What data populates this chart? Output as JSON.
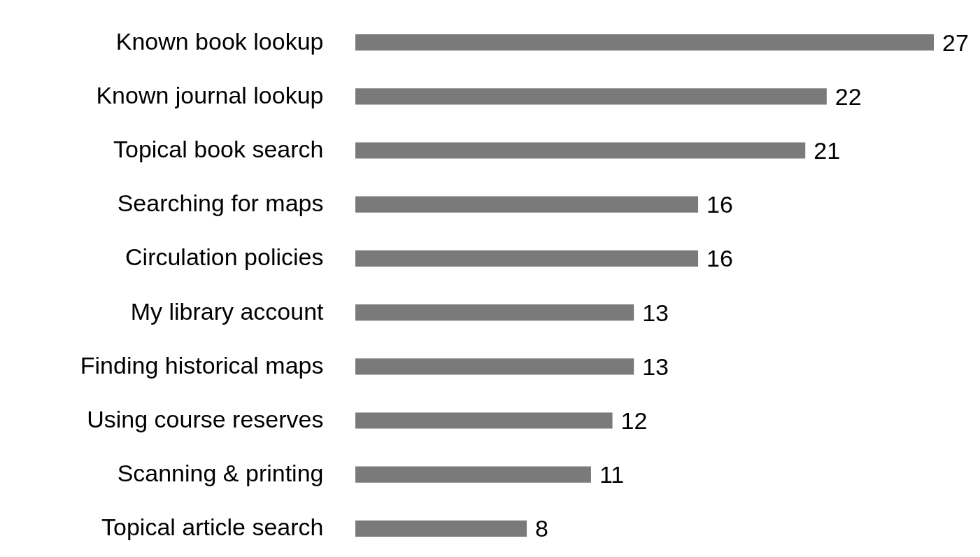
{
  "chart_data": {
    "type": "bar",
    "orientation": "horizontal",
    "data_labels": true,
    "color": "#7a7a7a",
    "categories": [
      "Known book lookup",
      "Known journal lookup",
      "Topical book search",
      "Searching for maps",
      "Circulation policies",
      "My library account",
      "Finding historical maps",
      "Using course reserves",
      "Scanning & printing",
      "Topical article search"
    ],
    "values": [
      27,
      22,
      21,
      16,
      16,
      13,
      13,
      12,
      11,
      8
    ]
  }
}
